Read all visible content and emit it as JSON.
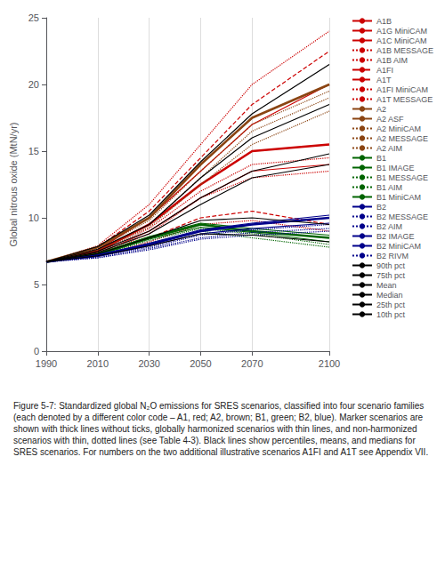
{
  "chart_data": {
    "type": "line",
    "ylabel": "Global nitrous oxide (MtN/yr)",
    "annotations": [
      "Figure 5-7: Standardized global N₂O emissions for SRES scenarios, classified into four scenario families (each denoted by a different color code – A1, red; A2, brown; B1, green; B2, blue). Marker scenarios are shown with thick lines without ticks, globally harmonized scenarios with thin lines, and non-harmonized scenarios with thin, dotted lines (see Table 4-3). Black lines show percentiles, means, and medians for SRES scenarios. For numbers on the two additional illustrative scenarios A1FI and A1T see Appendix VII."
    ],
    "x": [
      1990,
      2010,
      2030,
      2050,
      2070,
      2100
    ],
    "xlim": [
      1990,
      2100
    ],
    "xticks": [
      1990,
      2010,
      2030,
      2050,
      2070,
      2100
    ],
    "ylim": [
      0,
      25
    ],
    "yticks": [
      0,
      5,
      10,
      15,
      20,
      25
    ],
    "grid": "x",
    "legend": "right",
    "series": [
      {
        "name": "A1B",
        "color": "#cc0000",
        "line_style": "bold",
        "values": [
          6.7,
          7.5,
          9.5,
          12.5,
          15.0,
          15.5
        ]
      },
      {
        "name": "A1G MiniCAM",
        "color": "#cc0000",
        "line_style": "solid",
        "values": [
          6.7,
          7.3,
          9.0,
          11.5,
          13.5,
          14.0
        ]
      },
      {
        "name": "A1C MiniCAM",
        "color": "#cc0000",
        "line_style": "solid",
        "values": [
          6.7,
          7.6,
          10.0,
          13.5,
          17.0,
          20.0
        ]
      },
      {
        "name": "A1B MESSAGE",
        "color": "#cc0000",
        "line_style": "dotted",
        "values": [
          6.7,
          7.4,
          9.2,
          12.0,
          14.0,
          14.5
        ]
      },
      {
        "name": "A1B AIM",
        "color": "#cc0000",
        "line_style": "dotted",
        "values": [
          6.7,
          7.2,
          8.8,
          11.5,
          13.0,
          13.5
        ]
      },
      {
        "name": "A1FI",
        "color": "#cc0000",
        "line_style": "dashed",
        "values": [
          6.7,
          7.8,
          10.5,
          14.5,
          18.5,
          22.5
        ]
      },
      {
        "name": "A1T",
        "color": "#cc0000",
        "line_style": "dashed",
        "values": [
          6.7,
          7.2,
          8.5,
          10.0,
          10.5,
          9.5
        ]
      },
      {
        "name": "A1FI MiniCAM",
        "color": "#cc0000",
        "line_style": "dotted",
        "values": [
          6.7,
          7.9,
          11.0,
          15.5,
          20.0,
          24.0
        ]
      },
      {
        "name": "A1T MESSAGE",
        "color": "#cc0000",
        "line_style": "dotted",
        "values": [
          6.7,
          7.1,
          8.2,
          9.5,
          9.8,
          9.0
        ]
      },
      {
        "name": "A2",
        "color": "#8B4513",
        "line_style": "bold",
        "values": [
          6.7,
          7.8,
          10.0,
          14.0,
          17.5,
          20.0
        ]
      },
      {
        "name": "A2 ASF",
        "color": "#8B4513",
        "line_style": "solid",
        "values": [
          6.7,
          7.8,
          10.0,
          14.0,
          17.5,
          20.0
        ]
      },
      {
        "name": "A2 MiniCAM",
        "color": "#8B4513",
        "line_style": "dotted",
        "values": [
          6.7,
          7.6,
          9.5,
          13.0,
          16.5,
          19.0
        ]
      },
      {
        "name": "A2 MESSAGE",
        "color": "#8B4513",
        "line_style": "dotted",
        "values": [
          6.7,
          7.7,
          9.8,
          13.5,
          17.0,
          19.5
        ]
      },
      {
        "name": "A2 AIM",
        "color": "#8B4513",
        "line_style": "dotted",
        "values": [
          6.7,
          7.5,
          9.3,
          12.5,
          15.5,
          18.0
        ]
      },
      {
        "name": "B1",
        "color": "#006400",
        "line_style": "bold",
        "values": [
          6.7,
          7.3,
          8.5,
          9.5,
          9.0,
          8.5
        ]
      },
      {
        "name": "B1 IMAGE",
        "color": "#006400",
        "line_style": "solid",
        "values": [
          6.7,
          7.2,
          8.4,
          9.3,
          8.9,
          8.2
        ]
      },
      {
        "name": "B1 MESSAGE",
        "color": "#006400",
        "line_style": "dotted",
        "values": [
          6.7,
          7.2,
          8.3,
          9.2,
          8.8,
          8.0
        ]
      },
      {
        "name": "B1 AIM",
        "color": "#006400",
        "line_style": "dotted",
        "values": [
          6.7,
          7.1,
          8.1,
          9.0,
          8.5,
          7.8
        ]
      },
      {
        "name": "B1 MiniCAM",
        "color": "#006400",
        "line_style": "solid",
        "values": [
          6.7,
          7.3,
          8.6,
          9.6,
          9.2,
          8.7
        ]
      },
      {
        "name": "B2",
        "color": "#00008B",
        "line_style": "bold",
        "values": [
          6.7,
          7.2,
          8.0,
          9.0,
          9.5,
          10.0
        ]
      },
      {
        "name": "B2 MESSAGE",
        "color": "#00008B",
        "line_style": "dotted",
        "values": [
          6.7,
          7.1,
          7.8,
          8.7,
          9.1,
          9.5
        ]
      },
      {
        "name": "B2 AIM",
        "color": "#00008B",
        "line_style": "dotted",
        "values": [
          6.7,
          7.0,
          7.7,
          8.5,
          8.9,
          9.2
        ]
      },
      {
        "name": "B2 IMAGE",
        "color": "#00008B",
        "line_style": "solid",
        "values": [
          6.7,
          7.1,
          7.9,
          8.8,
          9.2,
          9.6
        ]
      },
      {
        "name": "B2 MiniCAM",
        "color": "#00008B",
        "line_style": "solid",
        "values": [
          6.7,
          7.2,
          8.1,
          9.1,
          9.6,
          10.2
        ]
      },
      {
        "name": "B2 RIVM",
        "color": "#00008B",
        "line_style": "dotted",
        "values": [
          6.7,
          7.0,
          7.6,
          8.4,
          8.7,
          9.0
        ]
      },
      {
        "name": "90th pct",
        "color": "#000000",
        "line_style": "solid",
        "values": [
          6.7,
          7.85,
          10.2,
          14.2,
          17.8,
          21.5
        ]
      },
      {
        "name": "75th pct",
        "color": "#000000",
        "line_style": "solid",
        "values": [
          6.7,
          7.65,
          9.5,
          13.0,
          16.0,
          18.5
        ]
      },
      {
        "name": "Mean",
        "color": "#000000",
        "line_style": "solid",
        "values": [
          6.7,
          7.5,
          9.0,
          11.5,
          13.5,
          14.8
        ]
      },
      {
        "name": "Median",
        "color": "#000000",
        "line_style": "solid",
        "values": [
          6.7,
          7.4,
          8.8,
          11.0,
          13.0,
          14.0
        ]
      },
      {
        "name": "25th pct",
        "color": "#000000",
        "line_style": "solid",
        "values": [
          6.7,
          7.3,
          8.5,
          9.8,
          10.0,
          9.5
        ]
      },
      {
        "name": "10th pct",
        "color": "#000000",
        "line_style": "solid",
        "values": [
          6.7,
          7.15,
          7.9,
          8.8,
          8.7,
          8.2
        ]
      }
    ]
  }
}
